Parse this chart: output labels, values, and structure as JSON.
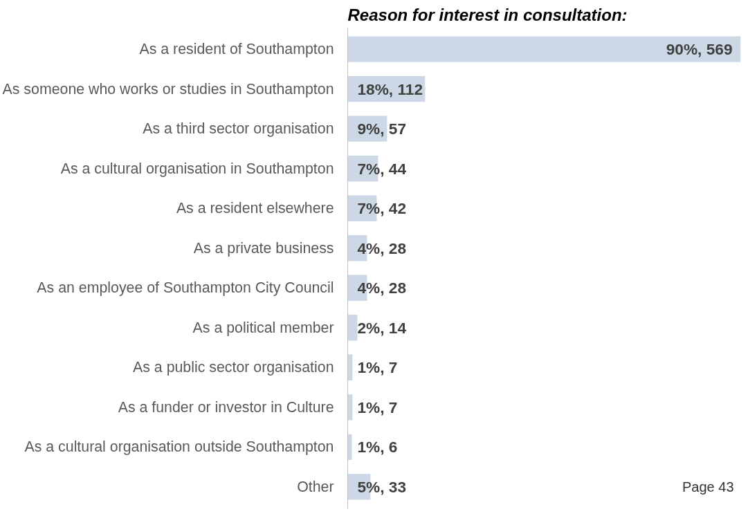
{
  "chart_data": {
    "type": "bar",
    "orientation": "horizontal",
    "title": "Reason for interest in consultation:",
    "annotations": [
      "Page 43"
    ],
    "categories": [
      "As a resident of Southampton",
      "As someone who works or studies in Southampton",
      "As a third sector organisation",
      "As a cultural organisation in Southampton",
      "As a resident elsewhere",
      "As a private business",
      "As an employee of Southampton City Council",
      "As a political member",
      "As a public sector organisation",
      "As a funder or investor in Culture",
      "As a cultural organisation outside Southampton",
      "Other"
    ],
    "values": [
      569,
      112,
      57,
      44,
      42,
      28,
      28,
      14,
      7,
      7,
      6,
      33
    ],
    "value_labels": [
      "90%, 569",
      "18%, 112",
      "9%, 57",
      "7%, 44",
      "7%, 42",
      "4%, 28",
      "4%, 28",
      "2%, 14",
      "1%, 7",
      "1%, 7",
      "1%, 6",
      "5%, 33"
    ],
    "color": "#cdd8e6",
    "grid": false
  }
}
